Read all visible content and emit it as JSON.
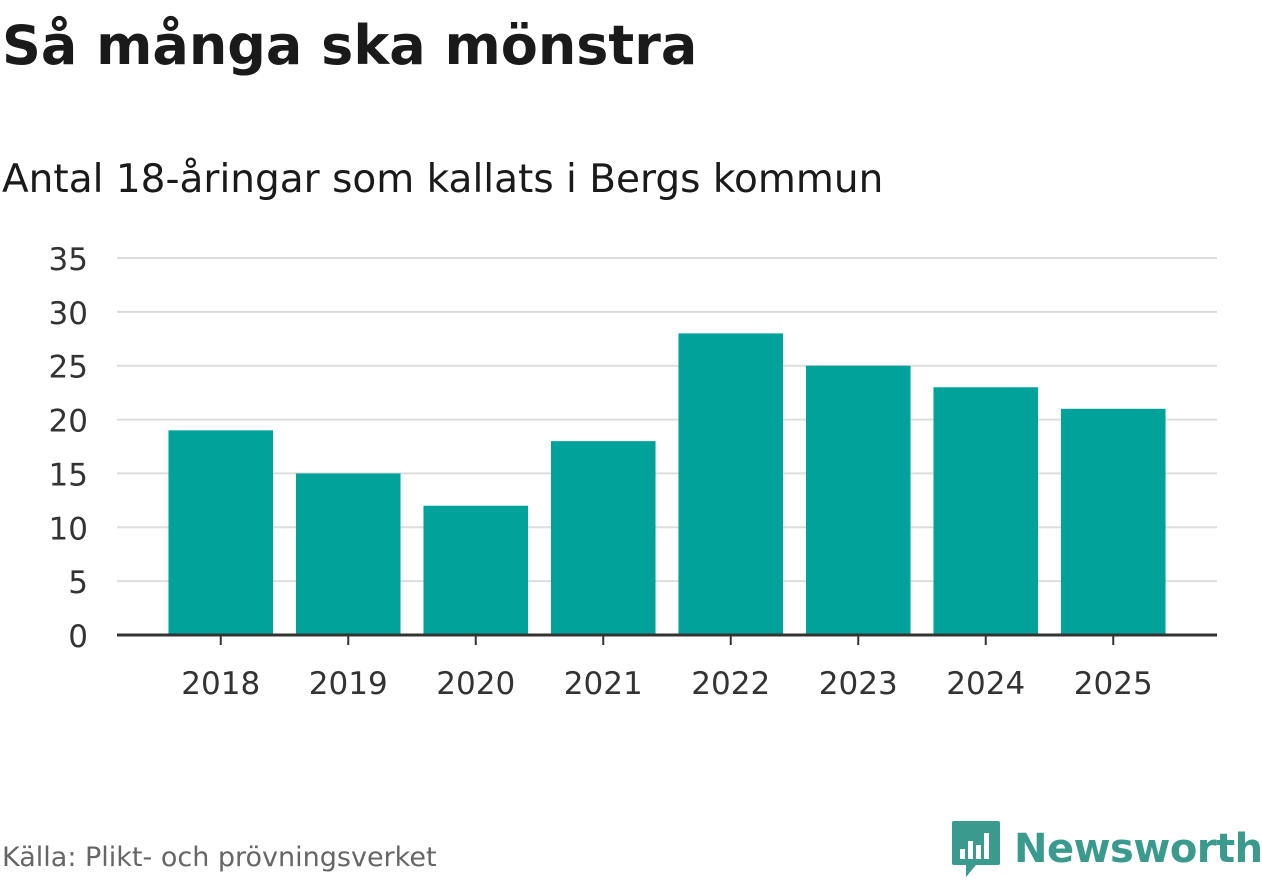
{
  "header": {
    "title": "Så många ska mönstra",
    "subtitle": "Antal 18-åringar som kallats i Bergs kommun"
  },
  "footer": {
    "source": "Källa: Plikt- och prövningsverket",
    "brand": "Newsworthy"
  },
  "colors": {
    "bar": "#00a29a",
    "grid": "#dddddd",
    "axis": "#333333",
    "tick_text": "#333333",
    "brand": "#3b9a8e",
    "source_text": "#666666"
  },
  "chart_data": {
    "type": "bar",
    "title": "Så många ska mönstra",
    "subtitle": "Antal 18-åringar som kallats i Bergs kommun",
    "categories": [
      "2018",
      "2019",
      "2020",
      "2021",
      "2022",
      "2023",
      "2024",
      "2025"
    ],
    "values": [
      19,
      15,
      12,
      18,
      28,
      25,
      23,
      21
    ],
    "xlabel": "",
    "ylabel": "",
    "ylim": [
      0,
      35
    ],
    "yticks": [
      0,
      5,
      10,
      15,
      20,
      25,
      30,
      35
    ],
    "grid": true,
    "legend": "none"
  }
}
